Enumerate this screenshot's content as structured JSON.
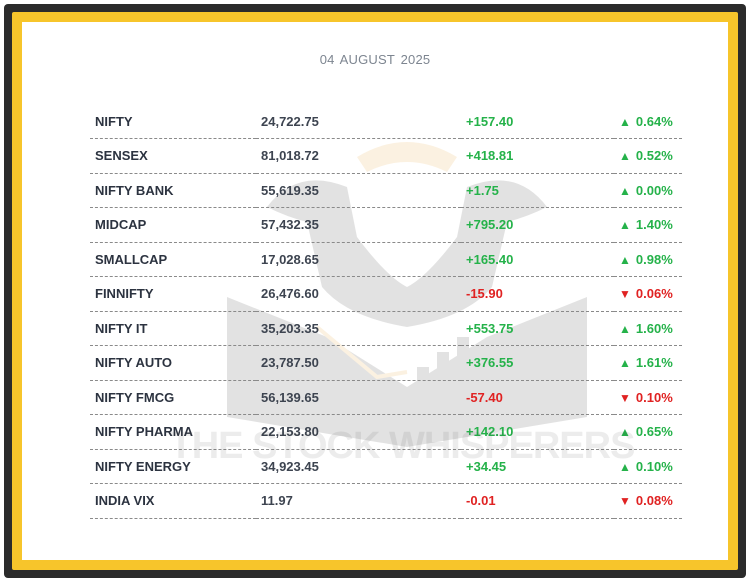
{
  "date": "04 AUGUST  2025",
  "watermark": "THE STOCK WHISPERERS",
  "colors": {
    "up": "#25b24a",
    "down": "#e02222",
    "frame": "#f7c52b"
  },
  "rows": [
    {
      "name": "NIFTY",
      "price": "24,722.75",
      "change": "+157.40",
      "arrow": "▲",
      "pct": "0.64%",
      "dir": "up"
    },
    {
      "name": "SENSEX",
      "price": "81,018.72",
      "change": "+418.81",
      "arrow": "▲",
      "pct": "0.52%",
      "dir": "up"
    },
    {
      "name": "NIFTY BANK",
      "price": "55,619.35",
      "change": "+1.75",
      "arrow": "▲",
      "pct": "0.00%",
      "dir": "up"
    },
    {
      "name": "MIDCAP",
      "price": "57,432.35",
      "change": "+795.20",
      "arrow": "▲",
      "pct": "1.40%",
      "dir": "up"
    },
    {
      "name": "SMALLCAP",
      "price": "17,028.65",
      "change": "+165.40",
      "arrow": "▲",
      "pct": "0.98%",
      "dir": "up"
    },
    {
      "name": "FINNIFTY",
      "price": "26,476.60",
      "change": "-15.90",
      "arrow": "▼",
      "pct": "0.06%",
      "dir": "down"
    },
    {
      "name": "NIFTY IT",
      "price": "35,203.35",
      "change": "+553.75",
      "arrow": "▲",
      "pct": "1.60%",
      "dir": "up"
    },
    {
      "name": "NIFTY AUTO",
      "price": "23,787.50",
      "change": "+376.55",
      "arrow": "▲",
      "pct": "1.61%",
      "dir": "up"
    },
    {
      "name": "NIFTY FMCG",
      "price": "56,139.65",
      "change": "-57.40",
      "arrow": "▼",
      "pct": "0.10%",
      "dir": "down"
    },
    {
      "name": "NIFTY PHARMA",
      "price": "22,153.80",
      "change": "+142.10",
      "arrow": "▲",
      "pct": "0.65%",
      "dir": "up"
    },
    {
      "name": "NIFTY ENERGY",
      "price": "34,923.45",
      "change": "+34.45",
      "arrow": "▲",
      "pct": "0.10%",
      "dir": "up"
    },
    {
      "name": "INDIA VIX",
      "price": "11.97",
      "change": "-0.01",
      "arrow": "▼",
      "pct": "0.08%",
      "dir": "down"
    }
  ]
}
